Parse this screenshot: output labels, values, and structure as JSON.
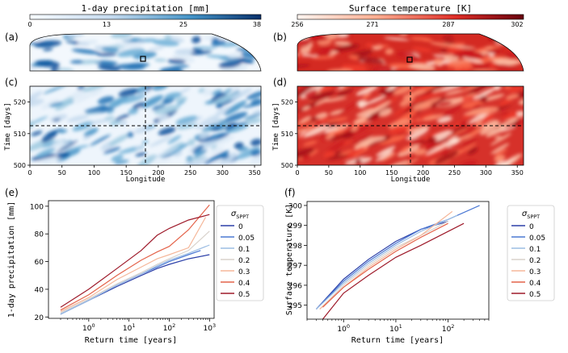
{
  "chart_data": [
    {
      "id": "colorbar_precip",
      "type": "colorbar",
      "title": "1-day precipitation [mm]",
      "ticks": [
        "0",
        "13",
        "25",
        "38"
      ],
      "range": [
        0,
        38
      ],
      "colors": [
        "#ffffff",
        "#08306b"
      ]
    },
    {
      "id": "colorbar_temp",
      "type": "colorbar",
      "title": "Surface temperature [K]",
      "ticks": [
        "256",
        "271",
        "287",
        "302"
      ],
      "range": [
        256,
        302
      ],
      "colors": [
        "#ffffff",
        "#67000d"
      ]
    },
    {
      "id": "panel_a",
      "type": "heatmap",
      "panel_label": "(a)",
      "field": "precipitation",
      "projection": "hemisphere"
    },
    {
      "id": "panel_b",
      "type": "heatmap",
      "panel_label": "(b)",
      "field": "temperature",
      "projection": "hemisphere"
    },
    {
      "id": "panel_c",
      "type": "heatmap",
      "panel_label": "(c)",
      "field": "precipitation",
      "xlabel": "Longitude",
      "ylabel": "Time [days]",
      "xticks": [
        "0",
        "50",
        "100",
        "150",
        "200",
        "250",
        "300",
        "350"
      ],
      "yticks": [
        "500",
        "510",
        "520"
      ],
      "xlim": [
        0,
        360
      ],
      "ylim": [
        500,
        525
      ],
      "crosshair": {
        "x": 180,
        "y": 512.5
      }
    },
    {
      "id": "panel_d",
      "type": "heatmap",
      "panel_label": "(d)",
      "field": "temperature",
      "xlabel": "Longitude",
      "ylabel": "Time [days]",
      "xticks": [
        "0",
        "50",
        "100",
        "150",
        "200",
        "250",
        "300",
        "350"
      ],
      "yticks": [
        "500",
        "510",
        "520"
      ],
      "xlim": [
        0,
        360
      ],
      "ylim": [
        500,
        525
      ],
      "crosshair": {
        "x": 180,
        "y": 512.5
      }
    },
    {
      "id": "panel_e",
      "type": "line",
      "panel_label": "(e)",
      "xlabel": "Return time [years]",
      "ylabel": "1-day precipitation [mm]",
      "xscale": "log",
      "xlim": [
        0.1,
        1300
      ],
      "ylim": [
        19,
        104
      ],
      "xticks": [
        1,
        10,
        100,
        1000
      ],
      "xtick_labels": [
        [
          "10",
          "0"
        ],
        [
          "10",
          "1"
        ],
        [
          "10",
          "2"
        ],
        [
          "10",
          "3"
        ]
      ],
      "yticks": [
        "20",
        "40",
        "60",
        "80",
        "100"
      ],
      "legend": {
        "title": "σ",
        "title_sub": "SPPT",
        "position": "right-outside"
      },
      "series": [
        {
          "name": "0",
          "color": "#2b3fa8",
          "x": [
            0.2,
            1,
            5,
            20,
            50,
            100,
            300,
            1000
          ],
          "y": [
            22,
            32,
            42,
            50,
            55,
            58,
            62,
            65
          ]
        },
        {
          "name": "0.05",
          "color": "#4b78d4",
          "x": [
            0.2,
            1,
            5,
            20,
            50,
            100,
            300,
            600
          ],
          "y": [
            22,
            32,
            43,
            51,
            56,
            60,
            65,
            68
          ]
        },
        {
          "name": "0.1",
          "color": "#9cbde3",
          "x": [
            0.2,
            1,
            5,
            20,
            50,
            100,
            300,
            1000
          ],
          "y": [
            22,
            32,
            43,
            51,
            57,
            61,
            66,
            72
          ]
        },
        {
          "name": "0.2",
          "color": "#d9d2cc",
          "x": [
            0.2,
            1,
            5,
            20,
            50,
            100,
            300,
            1000
          ],
          "y": [
            23,
            33,
            44,
            52,
            58,
            62,
            68,
            82
          ]
        },
        {
          "name": "0.3",
          "color": "#f5b79a",
          "x": [
            0.2,
            1,
            5,
            20,
            50,
            100,
            300,
            800
          ],
          "y": [
            24,
            34,
            47,
            56,
            62,
            65,
            70,
            92
          ]
        },
        {
          "name": "0.4",
          "color": "#e4634a",
          "x": [
            0.2,
            1,
            5,
            20,
            50,
            100,
            300,
            1000
          ],
          "y": [
            25,
            36,
            50,
            61,
            67,
            71,
            83,
            101
          ]
        },
        {
          "name": "0.5",
          "color": "#9e1a2a",
          "x": [
            0.2,
            1,
            5,
            20,
            50,
            100,
            300,
            1000
          ],
          "y": [
            27,
            40,
            55,
            68,
            79,
            84,
            90,
            94
          ]
        }
      ]
    },
    {
      "id": "panel_f",
      "type": "line",
      "panel_label": "(f)",
      "xlabel": "Return time [years]",
      "ylabel": "Surface temperature [K]",
      "xscale": "log",
      "xlim": [
        0.2,
        600
      ],
      "ylim": [
        294.3,
        300.2
      ],
      "xticks": [
        1,
        10,
        100
      ],
      "xtick_labels": [
        [
          "10",
          "0"
        ],
        [
          "10",
          "1"
        ],
        [
          "10",
          "2"
        ]
      ],
      "yticks": [
        "295",
        "296",
        "297",
        "298",
        "299",
        "300"
      ],
      "legend": {
        "title": "σ",
        "title_sub": "SPPT",
        "position": "right-outside"
      },
      "series": [
        {
          "name": "0",
          "color": "#2b3fa8",
          "x": [
            0.3,
            1,
            3,
            10,
            30,
            100
          ],
          "y": [
            294.8,
            296.3,
            297.3,
            298.2,
            298.8,
            299.2
          ]
        },
        {
          "name": "0.05",
          "color": "#4b78d4",
          "x": [
            0.3,
            1,
            3,
            10,
            30,
            100,
            400
          ],
          "y": [
            294.8,
            296.2,
            297.2,
            298.1,
            298.8,
            299.3,
            300.0
          ]
        },
        {
          "name": "0.1",
          "color": "#9cbde3",
          "x": [
            0.3,
            1,
            3,
            10,
            30,
            150
          ],
          "y": [
            294.8,
            296.1,
            297.1,
            298.0,
            298.7,
            299.5
          ]
        },
        {
          "name": "0.2",
          "color": "#d9d2cc",
          "x": [
            0.35,
            1,
            3,
            10,
            30,
            100
          ],
          "y": [
            294.8,
            296.0,
            297.0,
            297.9,
            298.5,
            299.2
          ]
        },
        {
          "name": "0.3",
          "color": "#f5b79a",
          "x": [
            0.35,
            1,
            3,
            10,
            30,
            120
          ],
          "y": [
            294.8,
            295.9,
            296.9,
            297.8,
            298.5,
            299.7
          ]
        },
        {
          "name": "0.4",
          "color": "#e4634a",
          "x": [
            0.4,
            1,
            3,
            10,
            30,
            100
          ],
          "y": [
            294.9,
            295.9,
            296.8,
            297.7,
            298.4,
            299.1
          ]
        },
        {
          "name": "0.5",
          "color": "#9e1a2a",
          "x": [
            0.4,
            1,
            3,
            10,
            30,
            200
          ],
          "y": [
            294.3,
            295.6,
            296.5,
            297.4,
            298.0,
            299.1
          ]
        }
      ]
    }
  ]
}
